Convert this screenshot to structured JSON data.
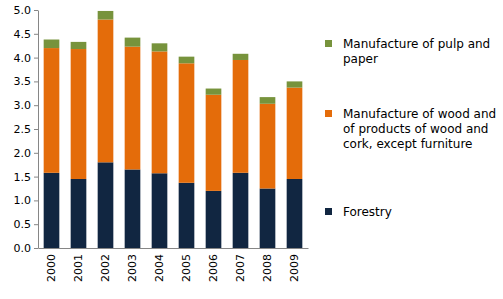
{
  "chart_data": {
    "type": "bar",
    "stacked": true,
    "grid": false,
    "legend": "right",
    "categories": [
      "2000",
      "2001",
      "2002",
      "2003",
      "2004",
      "2005",
      "2006",
      "2007",
      "2008",
      "2009"
    ],
    "series": [
      {
        "name": "Forestry",
        "color": "#112641",
        "values": [
          1.58,
          1.45,
          1.8,
          1.65,
          1.57,
          1.37,
          1.2,
          1.58,
          1.25,
          1.45
        ]
      },
      {
        "name": "Manufacture of wood and of products of wood and cork, except furniture",
        "color": "#e46c0a",
        "values": [
          2.62,
          2.73,
          3.0,
          2.58,
          2.56,
          2.51,
          2.02,
          2.37,
          1.78,
          1.92
        ]
      },
      {
        "name": "Manufacture of pulp and paper",
        "color": "#77933c",
        "values": [
          0.18,
          0.15,
          0.18,
          0.19,
          0.17,
          0.14,
          0.13,
          0.13,
          0.14,
          0.13
        ]
      }
    ],
    "ylim": [
      0,
      5
    ],
    "yticks": [
      {
        "value": 0,
        "label": "0.0"
      },
      0.5,
      {
        "value": 1,
        "label": "1.0"
      },
      1.5,
      {
        "value": 2,
        "label": "2.0"
      },
      2.5,
      {
        "value": 3,
        "label": "3.0"
      },
      3.5,
      {
        "value": 4,
        "label": "4.0"
      },
      4.5,
      {
        "value": 5,
        "label": "5.0"
      }
    ]
  }
}
